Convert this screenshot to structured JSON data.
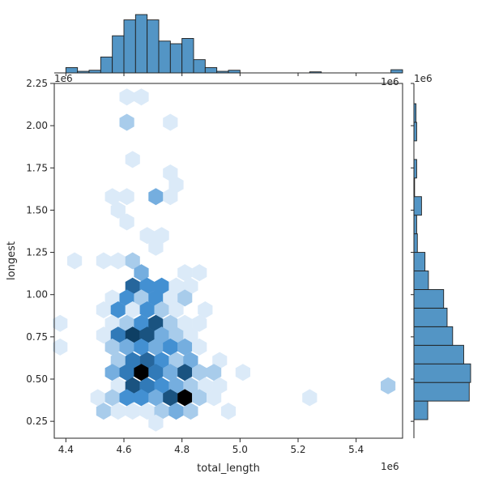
{
  "chart_data": {
    "type": "hexbin",
    "title": "",
    "xlabel": "total_length",
    "ylabel": "longest",
    "x_offset_label": "1e6",
    "y_offset_label": "1e6",
    "marginal_offset_labels": [
      "1e6",
      "1e6",
      "1e6"
    ],
    "xlim": [
      4.36,
      5.56
    ],
    "ylim": [
      0.15,
      2.25
    ],
    "x_ticks": [
      "4.4",
      "4.6",
      "4.8",
      "5.0",
      "5.2",
      "5.4"
    ],
    "y_ticks": [
      "0.25",
      "0.50",
      "0.75",
      "1.00",
      "1.25",
      "1.50",
      "1.75",
      "2.00",
      "2.25"
    ],
    "hexbin": {
      "x_units": "1e6",
      "y_units": "1e6",
      "max_count": 10,
      "cells": [
        {
          "x": 4.61,
          "y": 2.17,
          "count": 1
        },
        {
          "x": 4.66,
          "y": 2.17,
          "count": 1
        },
        {
          "x": 4.61,
          "y": 2.02,
          "count": 2
        },
        {
          "x": 4.76,
          "y": 2.02,
          "count": 1
        },
        {
          "x": 4.63,
          "y": 1.8,
          "count": 1
        },
        {
          "x": 4.76,
          "y": 1.72,
          "count": 1
        },
        {
          "x": 4.78,
          "y": 1.65,
          "count": 1
        },
        {
          "x": 4.56,
          "y": 1.58,
          "count": 1
        },
        {
          "x": 4.61,
          "y": 1.58,
          "count": 1
        },
        {
          "x": 4.71,
          "y": 1.58,
          "count": 3
        },
        {
          "x": 4.76,
          "y": 1.58,
          "count": 1
        },
        {
          "x": 4.58,
          "y": 1.5,
          "count": 1
        },
        {
          "x": 4.61,
          "y": 1.43,
          "count": 1
        },
        {
          "x": 4.68,
          "y": 1.35,
          "count": 1
        },
        {
          "x": 4.73,
          "y": 1.35,
          "count": 1
        },
        {
          "x": 4.71,
          "y": 1.28,
          "count": 1
        },
        {
          "x": 4.43,
          "y": 1.2,
          "count": 1
        },
        {
          "x": 4.53,
          "y": 1.2,
          "count": 1
        },
        {
          "x": 4.58,
          "y": 1.2,
          "count": 1
        },
        {
          "x": 4.63,
          "y": 1.2,
          "count": 2
        },
        {
          "x": 4.66,
          "y": 1.13,
          "count": 3
        },
        {
          "x": 4.81,
          "y": 1.13,
          "count": 1
        },
        {
          "x": 4.86,
          "y": 1.13,
          "count": 1
        },
        {
          "x": 4.63,
          "y": 1.05,
          "count": 6
        },
        {
          "x": 4.68,
          "y": 1.05,
          "count": 4
        },
        {
          "x": 4.73,
          "y": 1.05,
          "count": 4
        },
        {
          "x": 4.78,
          "y": 1.05,
          "count": 1
        },
        {
          "x": 4.83,
          "y": 1.05,
          "count": 1
        },
        {
          "x": 4.56,
          "y": 0.98,
          "count": 1
        },
        {
          "x": 4.61,
          "y": 0.98,
          "count": 4
        },
        {
          "x": 4.66,
          "y": 0.98,
          "count": 2
        },
        {
          "x": 4.71,
          "y": 0.98,
          "count": 4
        },
        {
          "x": 4.76,
          "y": 0.98,
          "count": 1
        },
        {
          "x": 4.81,
          "y": 0.98,
          "count": 2
        },
        {
          "x": 4.53,
          "y": 0.91,
          "count": 1
        },
        {
          "x": 4.58,
          "y": 0.91,
          "count": 4
        },
        {
          "x": 4.63,
          "y": 0.91,
          "count": 1
        },
        {
          "x": 4.68,
          "y": 0.91,
          "count": 4
        },
        {
          "x": 4.73,
          "y": 0.91,
          "count": 2
        },
        {
          "x": 4.78,
          "y": 0.91,
          "count": 1
        },
        {
          "x": 4.88,
          "y": 0.91,
          "count": 1
        },
        {
          "x": 4.38,
          "y": 0.83,
          "count": 1
        },
        {
          "x": 4.56,
          "y": 0.83,
          "count": 1
        },
        {
          "x": 4.61,
          "y": 0.83,
          "count": 2
        },
        {
          "x": 4.66,
          "y": 0.83,
          "count": 4
        },
        {
          "x": 4.71,
          "y": 0.83,
          "count": 7
        },
        {
          "x": 4.76,
          "y": 0.83,
          "count": 2
        },
        {
          "x": 4.81,
          "y": 0.83,
          "count": 1
        },
        {
          "x": 4.86,
          "y": 0.83,
          "count": 1
        },
        {
          "x": 4.53,
          "y": 0.76,
          "count": 1
        },
        {
          "x": 4.58,
          "y": 0.76,
          "count": 5
        },
        {
          "x": 4.63,
          "y": 0.76,
          "count": 8
        },
        {
          "x": 4.68,
          "y": 0.76,
          "count": 7
        },
        {
          "x": 4.73,
          "y": 0.76,
          "count": 3
        },
        {
          "x": 4.78,
          "y": 0.76,
          "count": 2
        },
        {
          "x": 4.83,
          "y": 0.76,
          "count": 1
        },
        {
          "x": 4.38,
          "y": 0.69,
          "count": 1
        },
        {
          "x": 4.56,
          "y": 0.69,
          "count": 2
        },
        {
          "x": 4.61,
          "y": 0.69,
          "count": 3
        },
        {
          "x": 4.66,
          "y": 0.69,
          "count": 4
        },
        {
          "x": 4.71,
          "y": 0.69,
          "count": 3
        },
        {
          "x": 4.76,
          "y": 0.69,
          "count": 4
        },
        {
          "x": 4.81,
          "y": 0.69,
          "count": 3
        },
        {
          "x": 4.86,
          "y": 0.69,
          "count": 1
        },
        {
          "x": 4.58,
          "y": 0.61,
          "count": 2
        },
        {
          "x": 4.63,
          "y": 0.61,
          "count": 5
        },
        {
          "x": 4.68,
          "y": 0.61,
          "count": 6
        },
        {
          "x": 4.73,
          "y": 0.61,
          "count": 4
        },
        {
          "x": 4.78,
          "y": 0.61,
          "count": 2
        },
        {
          "x": 4.83,
          "y": 0.61,
          "count": 3
        },
        {
          "x": 4.93,
          "y": 0.61,
          "count": 1
        },
        {
          "x": 4.56,
          "y": 0.54,
          "count": 3
        },
        {
          "x": 4.61,
          "y": 0.54,
          "count": 5
        },
        {
          "x": 4.66,
          "y": 0.54,
          "count": 10
        },
        {
          "x": 4.71,
          "y": 0.54,
          "count": 5
        },
        {
          "x": 4.76,
          "y": 0.54,
          "count": 3
        },
        {
          "x": 4.81,
          "y": 0.54,
          "count": 7
        },
        {
          "x": 4.86,
          "y": 0.54,
          "count": 2
        },
        {
          "x": 4.91,
          "y": 0.54,
          "count": 2
        },
        {
          "x": 5.01,
          "y": 0.54,
          "count": 1
        },
        {
          "x": 4.58,
          "y": 0.46,
          "count": 1
        },
        {
          "x": 4.63,
          "y": 0.46,
          "count": 7
        },
        {
          "x": 4.68,
          "y": 0.46,
          "count": 5
        },
        {
          "x": 4.73,
          "y": 0.46,
          "count": 4
        },
        {
          "x": 4.78,
          "y": 0.46,
          "count": 3
        },
        {
          "x": 4.83,
          "y": 0.46,
          "count": 2
        },
        {
          "x": 4.88,
          "y": 0.46,
          "count": 1
        },
        {
          "x": 4.93,
          "y": 0.46,
          "count": 1
        },
        {
          "x": 5.51,
          "y": 0.46,
          "count": 2
        },
        {
          "x": 4.51,
          "y": 0.39,
          "count": 1
        },
        {
          "x": 4.56,
          "y": 0.39,
          "count": 2
        },
        {
          "x": 4.61,
          "y": 0.39,
          "count": 4
        },
        {
          "x": 4.66,
          "y": 0.39,
          "count": 4
        },
        {
          "x": 4.71,
          "y": 0.39,
          "count": 3
        },
        {
          "x": 4.76,
          "y": 0.39,
          "count": 7
        },
        {
          "x": 4.81,
          "y": 0.39,
          "count": 10
        },
        {
          "x": 4.86,
          "y": 0.39,
          "count": 2
        },
        {
          "x": 4.91,
          "y": 0.39,
          "count": 1
        },
        {
          "x": 5.24,
          "y": 0.39,
          "count": 1
        },
        {
          "x": 4.53,
          "y": 0.31,
          "count": 2
        },
        {
          "x": 4.58,
          "y": 0.31,
          "count": 1
        },
        {
          "x": 4.63,
          "y": 0.31,
          "count": 1
        },
        {
          "x": 4.68,
          "y": 0.31,
          "count": 1
        },
        {
          "x": 4.73,
          "y": 0.31,
          "count": 2
        },
        {
          "x": 4.78,
          "y": 0.31,
          "count": 3
        },
        {
          "x": 4.83,
          "y": 0.31,
          "count": 2
        },
        {
          "x": 4.96,
          "y": 0.31,
          "count": 1
        },
        {
          "x": 4.71,
          "y": 0.24,
          "count": 1
        }
      ]
    },
    "marginal_x_histogram": {
      "bins": [
        {
          "start": 4.4,
          "end": 4.44,
          "count": 1
        },
        {
          "start": 4.44,
          "end": 4.48,
          "count": 0.3
        },
        {
          "start": 4.48,
          "end": 4.52,
          "count": 0.5
        },
        {
          "start": 4.52,
          "end": 4.56,
          "count": 3
        },
        {
          "start": 4.56,
          "end": 4.6,
          "count": 7
        },
        {
          "start": 4.6,
          "end": 4.64,
          "count": 10
        },
        {
          "start": 4.64,
          "end": 4.68,
          "count": 11
        },
        {
          "start": 4.68,
          "end": 4.72,
          "count": 10
        },
        {
          "start": 4.72,
          "end": 4.76,
          "count": 6
        },
        {
          "start": 4.76,
          "end": 4.8,
          "count": 5.5
        },
        {
          "start": 4.8,
          "end": 4.84,
          "count": 6.5
        },
        {
          "start": 4.84,
          "end": 4.88,
          "count": 2.5
        },
        {
          "start": 4.88,
          "end": 4.92,
          "count": 1
        },
        {
          "start": 4.92,
          "end": 4.96,
          "count": 0.3
        },
        {
          "start": 4.96,
          "end": 5.0,
          "count": 0.5
        },
        {
          "start": 5.24,
          "end": 5.28,
          "count": 0.2
        },
        {
          "start": 5.52,
          "end": 5.56,
          "count": 0.6
        }
      ]
    },
    "marginal_y_histogram": {
      "bins": [
        {
          "start": 0.26,
          "end": 0.37,
          "count": 2
        },
        {
          "start": 0.37,
          "end": 0.48,
          "count": 8
        },
        {
          "start": 0.48,
          "end": 0.59,
          "count": 8.2
        },
        {
          "start": 0.59,
          "end": 0.7,
          "count": 7.2
        },
        {
          "start": 0.7,
          "end": 0.81,
          "count": 5.6
        },
        {
          "start": 0.81,
          "end": 0.92,
          "count": 4.8
        },
        {
          "start": 0.92,
          "end": 1.03,
          "count": 4.3
        },
        {
          "start": 1.03,
          "end": 1.14,
          "count": 2.1
        },
        {
          "start": 1.14,
          "end": 1.25,
          "count": 1.6
        },
        {
          "start": 1.25,
          "end": 1.36,
          "count": 0.5
        },
        {
          "start": 1.36,
          "end": 1.47,
          "count": 0.4
        },
        {
          "start": 1.47,
          "end": 1.58,
          "count": 1.1
        },
        {
          "start": 1.58,
          "end": 1.69,
          "count": 0.1
        },
        {
          "start": 1.69,
          "end": 1.8,
          "count": 0.4
        },
        {
          "start": 1.91,
          "end": 2.02,
          "count": 0.4
        },
        {
          "start": 2.02,
          "end": 2.13,
          "count": 0.3
        }
      ]
    },
    "colors": {
      "hist_fill": "#5395c5",
      "hist_edge": "#1f1f1f",
      "hex_low": "#dbeaf8",
      "hex_mid": "#3b8bd0",
      "hex_high": "#0c3b5e",
      "hex_max": "#000000"
    }
  }
}
